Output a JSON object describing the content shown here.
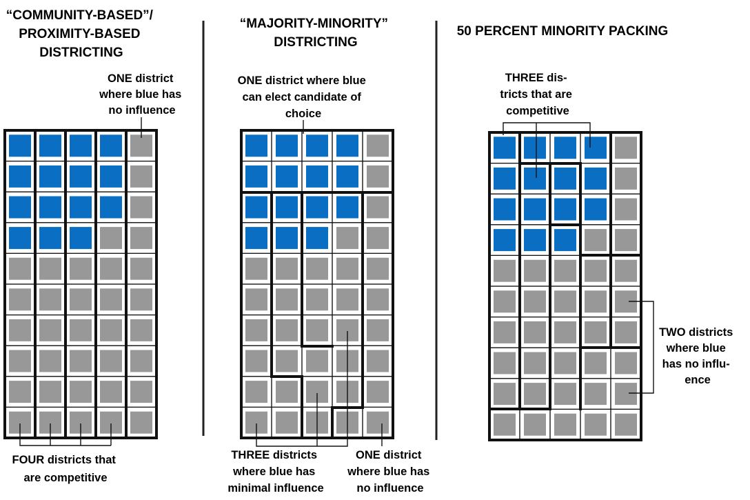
{
  "colors": {
    "blue": "#0a6fc2",
    "gray": "#989898",
    "line": "#111111"
  },
  "panels": [
    {
      "title_lines": [
        "“COMMUNITY-BASED”/",
        "PROXIMITY-BASED",
        "DISTRICTING"
      ],
      "grid": {
        "rows": [
          "BBBBG",
          "BBBBG",
          "BBBBG",
          "BBBGG",
          "GGGGG",
          "GGGGG",
          "GGGGG",
          "GGGGG",
          "GGGGG",
          "GGGGG"
        ]
      },
      "annotations": [
        {
          "lines": [
            "ONE district",
            "where blue has",
            "no influence"
          ]
        },
        {
          "lines": [
            "FOUR districts that",
            "are competitive"
          ]
        }
      ]
    },
    {
      "title_lines": [
        "“MAJORITY-MINORITY”",
        "DISTRICTING"
      ],
      "grid": {
        "rows": [
          "BBBBG",
          "BBBBG",
          "BBBBG",
          "BBBGG",
          "GGGGG",
          "GGGGG",
          "GGGGG",
          "GGGGG",
          "GGGGG",
          "GGGGG"
        ]
      },
      "annotations": [
        {
          "lines": [
            "ONE district where blue",
            "can elect candidate of",
            "choice"
          ]
        },
        {
          "lines": [
            "THREE districts",
            "where blue has",
            "minimal influence"
          ]
        },
        {
          "lines": [
            "ONE district",
            "where blue has",
            "no influence"
          ]
        }
      ]
    },
    {
      "title_lines": [
        "50 PERCENT MINORITY PACKING"
      ],
      "grid": {
        "rows": [
          "BBBBG",
          "BBBBG",
          "BBBBG",
          "BBBGG",
          "GGGGG",
          "GGGGG",
          "GGGGG",
          "GGGGG",
          "GGGGG",
          "GGGGG"
        ]
      },
      "annotations": [
        {
          "lines": [
            "THREE dis-",
            "tricts that are",
            "competitive"
          ]
        },
        {
          "lines": [
            "TWO districts",
            "where blue",
            "has no influ-",
            "ence"
          ]
        }
      ]
    }
  ]
}
